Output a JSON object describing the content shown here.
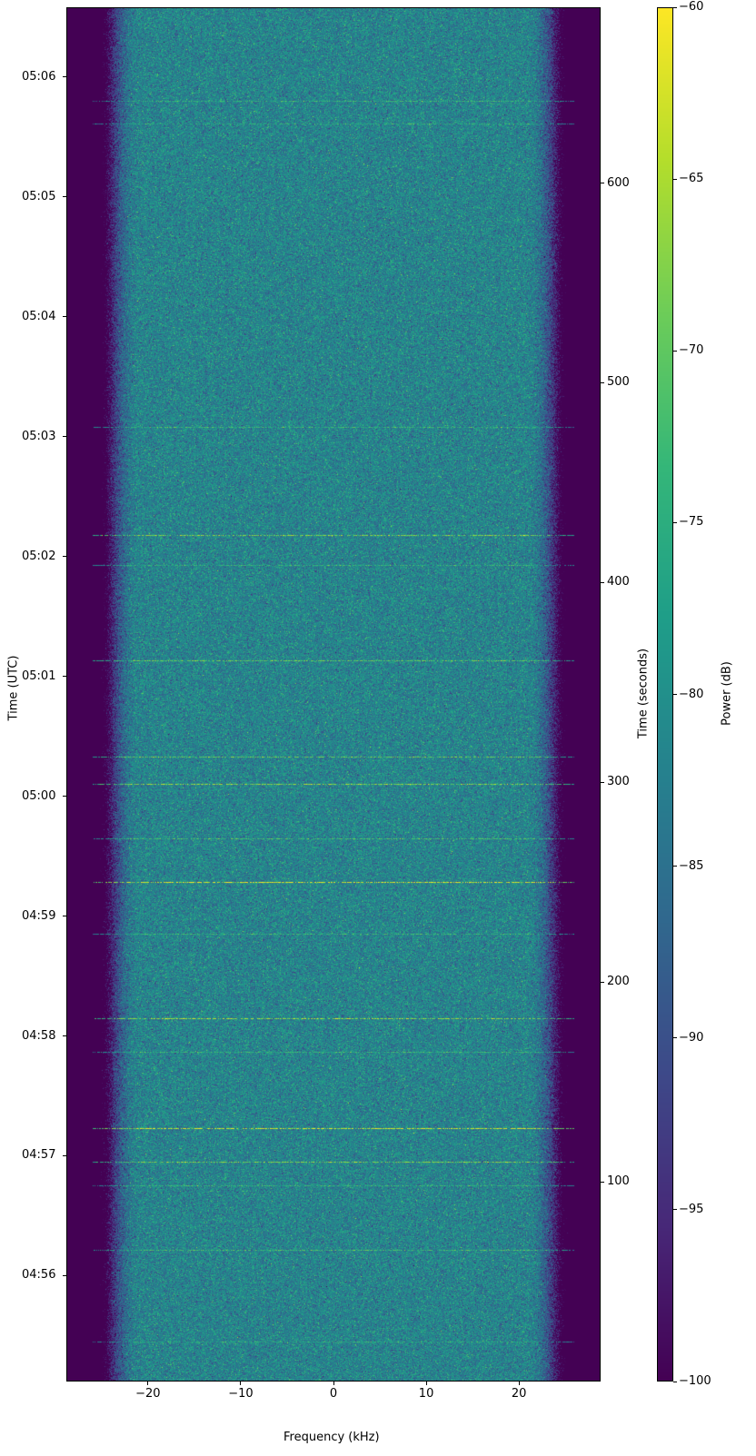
{
  "chart_data": {
    "type": "heatmap",
    "xlabel": "Frequency (kHz)",
    "ylabel_left": "Time (UTC)",
    "ylabel_right": "Time (seconds)",
    "colorbar_label": "Power (dB)",
    "colormap": "viridis",
    "xlim": [
      -28.8,
      28.8
    ],
    "x_ticks": [
      -20,
      -10,
      0,
      10,
      20
    ],
    "x_tick_labels": [
      "−20",
      "−10",
      "0",
      "10",
      "20"
    ],
    "ylim_seconds": [
      0,
      688
    ],
    "y_right_ticks": [
      100,
      200,
      300,
      400,
      500,
      600
    ],
    "y_right_tick_labels": [
      "100",
      "200",
      "300",
      "400",
      "500",
      "600"
    ],
    "y_left_ticks_seconds": [
      53,
      113,
      173,
      233,
      293,
      353,
      413,
      473,
      533,
      593,
      653
    ],
    "y_left_tick_labels": [
      "04:56",
      "04:57",
      "04:58",
      "04:59",
      "05:00",
      "05:01",
      "05:02",
      "05:03",
      "05:04",
      "05:05",
      "05:06"
    ],
    "clim": [
      -100,
      -60
    ],
    "colorbar_ticks": [
      -100,
      -95,
      -90,
      -85,
      -80,
      -75,
      -70,
      -65,
      -60
    ],
    "colorbar_tick_labels": [
      "−100",
      "−95",
      "−90",
      "−85",
      "−80",
      "−75",
      "−70",
      "−65",
      "−60"
    ],
    "noise_floor_db": -82,
    "passband_khz": [
      -25,
      25
    ],
    "signal_lines": [
      {
        "t": 641,
        "db": -74
      },
      {
        "t": 630,
        "db": -76
      },
      {
        "t": 478,
        "db": -74
      },
      {
        "t": 424,
        "db": -68
      },
      {
        "t": 409,
        "db": -74
      },
      {
        "t": 361,
        "db": -70
      },
      {
        "t": 313,
        "db": -70
      },
      {
        "t": 299,
        "db": -67
      },
      {
        "t": 272,
        "db": -72
      },
      {
        "t": 250,
        "db": -62
      },
      {
        "t": 224,
        "db": -74
      },
      {
        "t": 182,
        "db": -66
      },
      {
        "t": 165,
        "db": -74
      },
      {
        "t": 127,
        "db": -63
      },
      {
        "t": 110,
        "db": -68
      },
      {
        "t": 98,
        "db": -74
      },
      {
        "t": 66,
        "db": -72
      },
      {
        "t": 20,
        "db": -76
      }
    ]
  }
}
